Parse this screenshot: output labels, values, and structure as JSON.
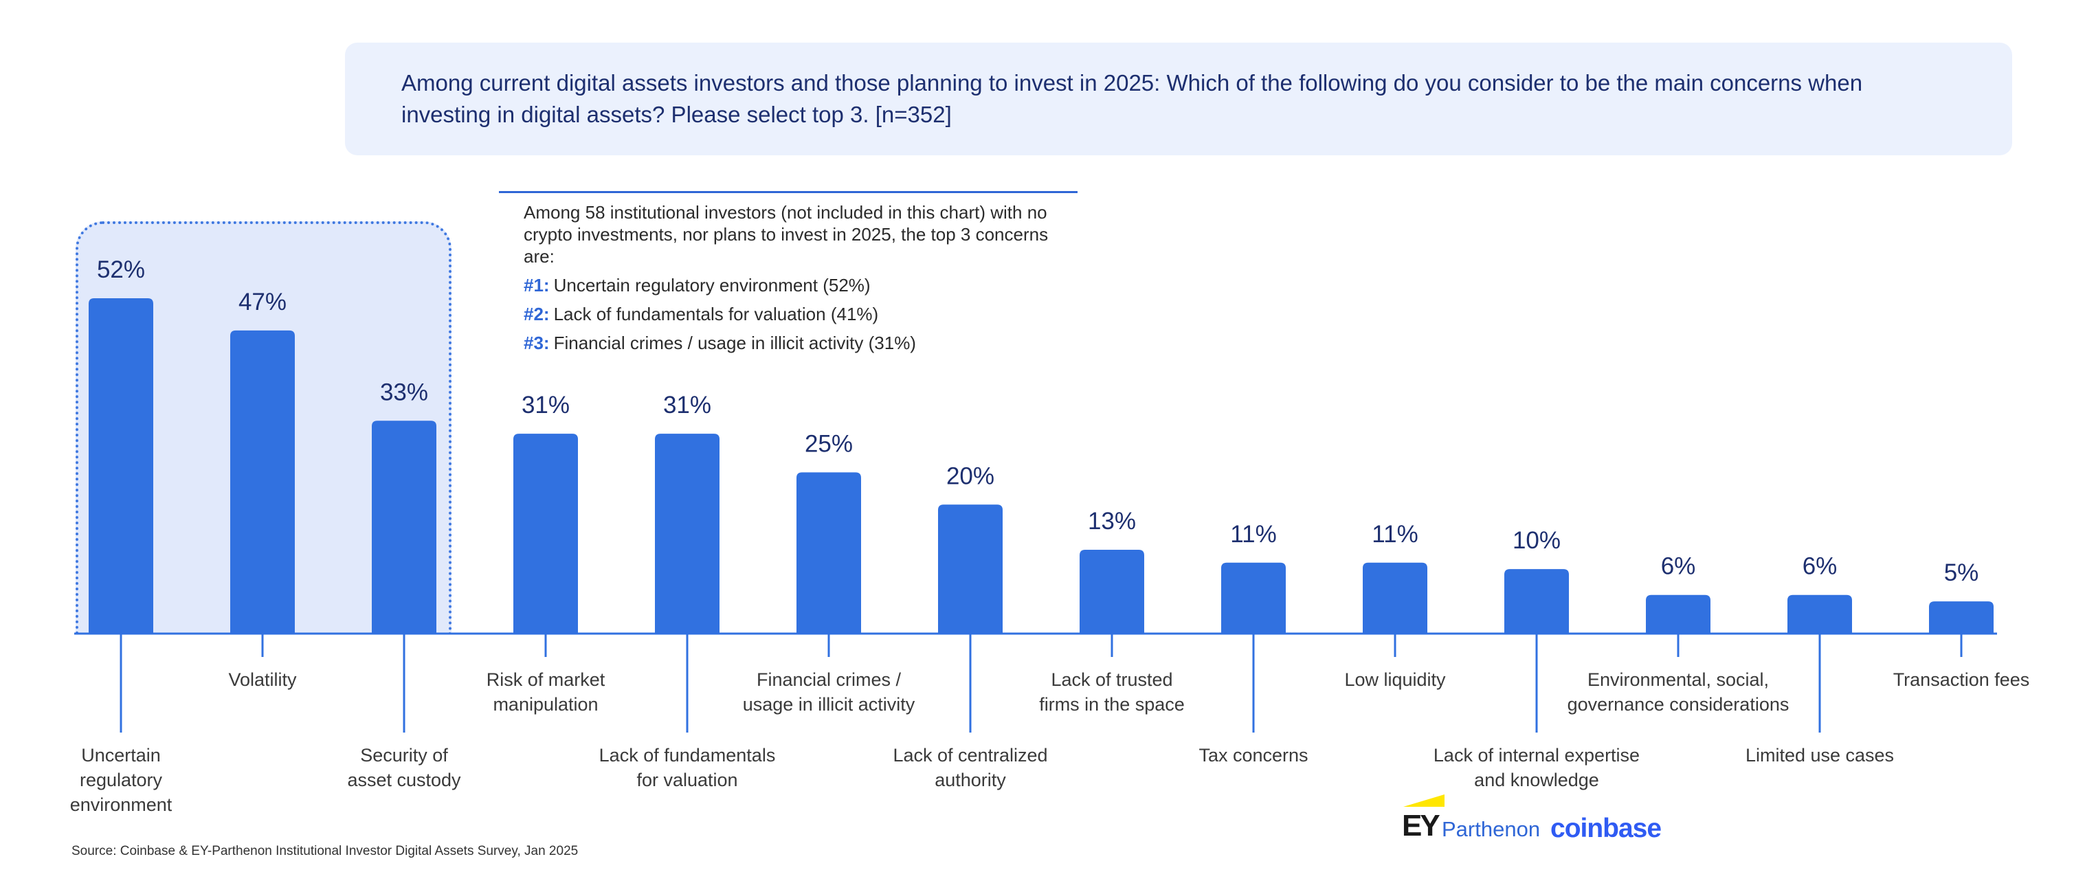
{
  "question": "Among current digital assets investors and those planning to invest in 2025: Which of the following do you consider to be the main concerns when investing in digital assets? Please select top 3. [n=352]",
  "note": {
    "intro": "Among 58 institutional investors (not included in this chart) with no crypto investments, nor plans to invest in 2025, the top 3 concerns are:",
    "items": [
      {
        "num": "#1:",
        "text": "Uncertain regulatory environment (52%)"
      },
      {
        "num": "#2:",
        "text": "Lack of fundamentals for valuation (41%)"
      },
      {
        "num": "#3:",
        "text": "Financial crimes / usage in illicit activity (31%)"
      }
    ]
  },
  "source": "Source: Coinbase & EY-Parthenon Institutional Investor Digital Assets Survey, Jan 2025",
  "logos": {
    "ey": "EY",
    "parthenon": "Parthenon",
    "coinbase": "coinbase"
  },
  "colors": {
    "bar": "#3171e0",
    "highlight": "#e1e9fb",
    "question_bg": "#ebf1fd",
    "value_text": "#1d2f6f"
  },
  "chart_data": {
    "type": "bar",
    "unit": "%",
    "highlighted_categories": 3,
    "ylim": [
      0,
      60
    ],
    "categories": [
      [
        "Uncertain",
        "regulatory",
        "environment"
      ],
      [
        "Volatility"
      ],
      [
        "Security of",
        "asset custody"
      ],
      [
        "Risk of market",
        "manipulation"
      ],
      [
        "Lack of fundamentals",
        "for valuation"
      ],
      [
        "Financial crimes /",
        "usage in illicit activity"
      ],
      [
        "Lack of centralized",
        "authority"
      ],
      [
        "Lack of trusted",
        "firms in the space"
      ],
      [
        "Tax concerns"
      ],
      [
        "Low liquidity"
      ],
      [
        "Lack of internal expertise",
        "and knowledge"
      ],
      [
        "Environmental, social,",
        "governance considerations"
      ],
      [
        "Limited use cases"
      ],
      [
        "Transaction fees"
      ]
    ],
    "values": [
      52,
      47,
      33,
      31,
      31,
      25,
      20,
      13,
      11,
      11,
      10,
      6,
      6,
      5
    ],
    "value_labels": [
      "52%",
      "47%",
      "33%",
      "31%",
      "31%",
      "25%",
      "20%",
      "13%",
      "11%",
      "11%",
      "10%",
      "6%",
      "6%",
      "5%"
    ]
  }
}
